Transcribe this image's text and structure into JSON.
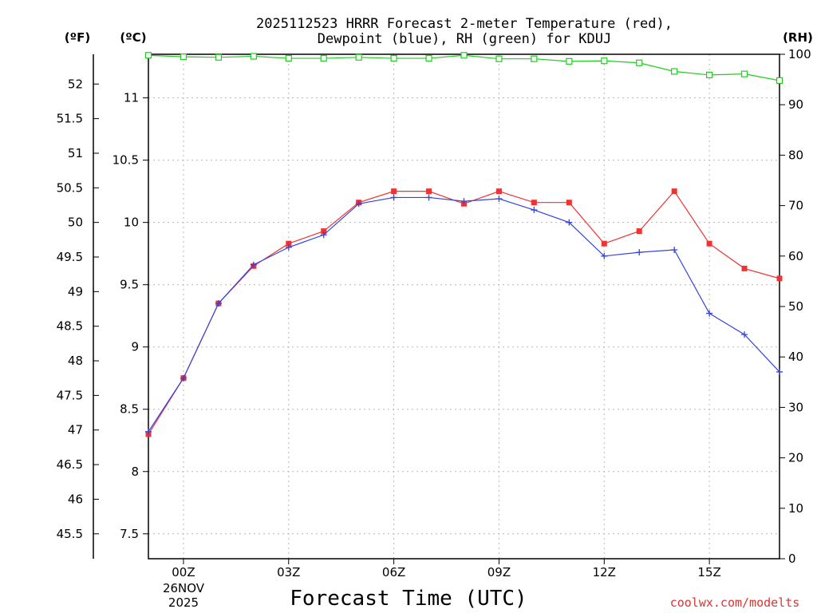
{
  "chart_data": {
    "type": "line",
    "title_line1": "2025112523 HRRR Forecast 2-meter Temperature (red),",
    "title_line2": "Dewpoint (blue), RH (green) for KDUJ",
    "xlabel": "Forecast Time (UTC)",
    "x_tick_labels": [
      "00Z",
      "03Z",
      "06Z",
      "09Z",
      "12Z",
      "15Z"
    ],
    "x_tick_hours": [
      0,
      3,
      6,
      9,
      12,
      15
    ],
    "x_date_line1": "26NOV",
    "x_date_line2": "2025",
    "xlim": [
      -1,
      17
    ],
    "x": [
      -1,
      0,
      1,
      2,
      3,
      4,
      5,
      6,
      7,
      8,
      9,
      10,
      11,
      12,
      13,
      14,
      15,
      16,
      17
    ],
    "unit_f": "(ºF)",
    "unit_c": "(ºC)",
    "unit_rh": "(RH)",
    "ylim_c": [
      7.3,
      11.35
    ],
    "ylim_rh": [
      0,
      100
    ],
    "y_ticks_c": [
      "7.5",
      "8",
      "8.5",
      "9",
      "9.5",
      "10",
      "10.5",
      "11"
    ],
    "y_ticks_f": [
      "45.5",
      "46",
      "46.5",
      "47",
      "47.5",
      "48",
      "48.5",
      "49",
      "49.5",
      "50",
      "50.5",
      "51",
      "51.5",
      "52"
    ],
    "y_ticks_rh": [
      "0",
      "10",
      "20",
      "30",
      "40",
      "50",
      "60",
      "70",
      "80",
      "90",
      "100"
    ],
    "grid": true,
    "series": [
      {
        "name": "Temperature",
        "color": "#ee3333",
        "marker": "square",
        "values": [
          8.3,
          8.75,
          9.35,
          9.65,
          9.83,
          9.93,
          10.16,
          10.25,
          10.25,
          10.15,
          10.25,
          10.16,
          10.16,
          9.83,
          9.93,
          10.25,
          9.83,
          9.63,
          9.55
        ]
      },
      {
        "name": "Dewpoint",
        "color": "#3344dd",
        "marker": "plus",
        "values": [
          8.32,
          8.75,
          9.35,
          9.66,
          9.8,
          9.9,
          10.15,
          10.2,
          10.2,
          10.17,
          10.19,
          10.1,
          10.0,
          9.73,
          9.76,
          9.78,
          9.27,
          9.1,
          8.8
        ]
      },
      {
        "name": "RH",
        "color": "#22cc22",
        "marker": "open-square",
        "axis": "rh",
        "values": [
          99.8,
          99.5,
          99.4,
          99.6,
          99.2,
          99.2,
          99.4,
          99.2,
          99.2,
          99.8,
          99.1,
          99.1,
          98.6,
          98.7,
          98.3,
          96.6,
          95.9,
          96.1,
          94.8
        ]
      }
    ]
  },
  "credit": "coolwx.com/modelts"
}
